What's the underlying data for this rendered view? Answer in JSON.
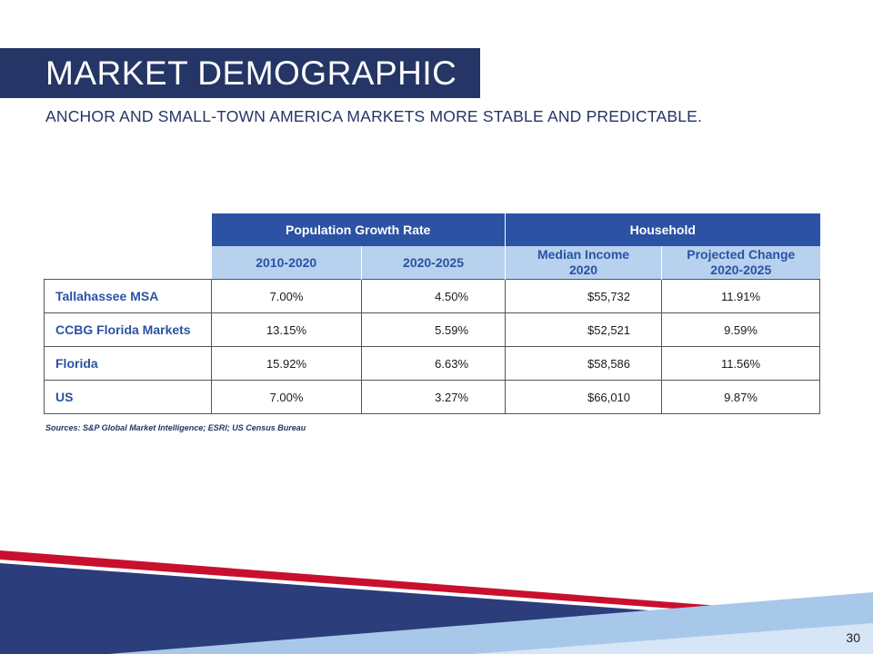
{
  "slide": {
    "title": "MARKET DEMOGRAPHIC",
    "subtitle": "ANCHOR AND SMALL-TOWN AMERICA MARKETS MORE STABLE AND PREDICTABLE.",
    "page_number": "30",
    "sources": "Sources: S&P Global Market Intelligence; ESRI; US Census Bureau"
  },
  "table": {
    "groups": {
      "population": "Population Growth Rate",
      "household": "Household"
    },
    "subheaders": {
      "pop1": "2010-2020",
      "pop2": "2020-2025",
      "income_line1": "Median Income",
      "income_line2": "2020",
      "change_line1": "Projected Change",
      "change_line2": "2020-2025"
    },
    "rows": [
      {
        "label": "Tallahassee MSA",
        "pop1": "7.00%",
        "pop2": "4.50%",
        "income": "$55,732",
        "change": "11.91%"
      },
      {
        "label": "CCBG Florida Markets",
        "pop1": "13.15%",
        "pop2": "5.59%",
        "income": "$52,521",
        "change": "9.59%"
      },
      {
        "label": "Florida",
        "pop1": "15.92%",
        "pop2": "6.63%",
        "income": "$58,586",
        "change": "11.56%"
      },
      {
        "label": "US",
        "pop1": "7.00%",
        "pop2": "3.27%",
        "income": "$66,010",
        "change": "9.87%"
      }
    ]
  },
  "colors": {
    "navy": "#253565",
    "header_blue": "#2b52a3",
    "light_blue": "#b7d1ee",
    "accent_red": "#c8102e"
  }
}
